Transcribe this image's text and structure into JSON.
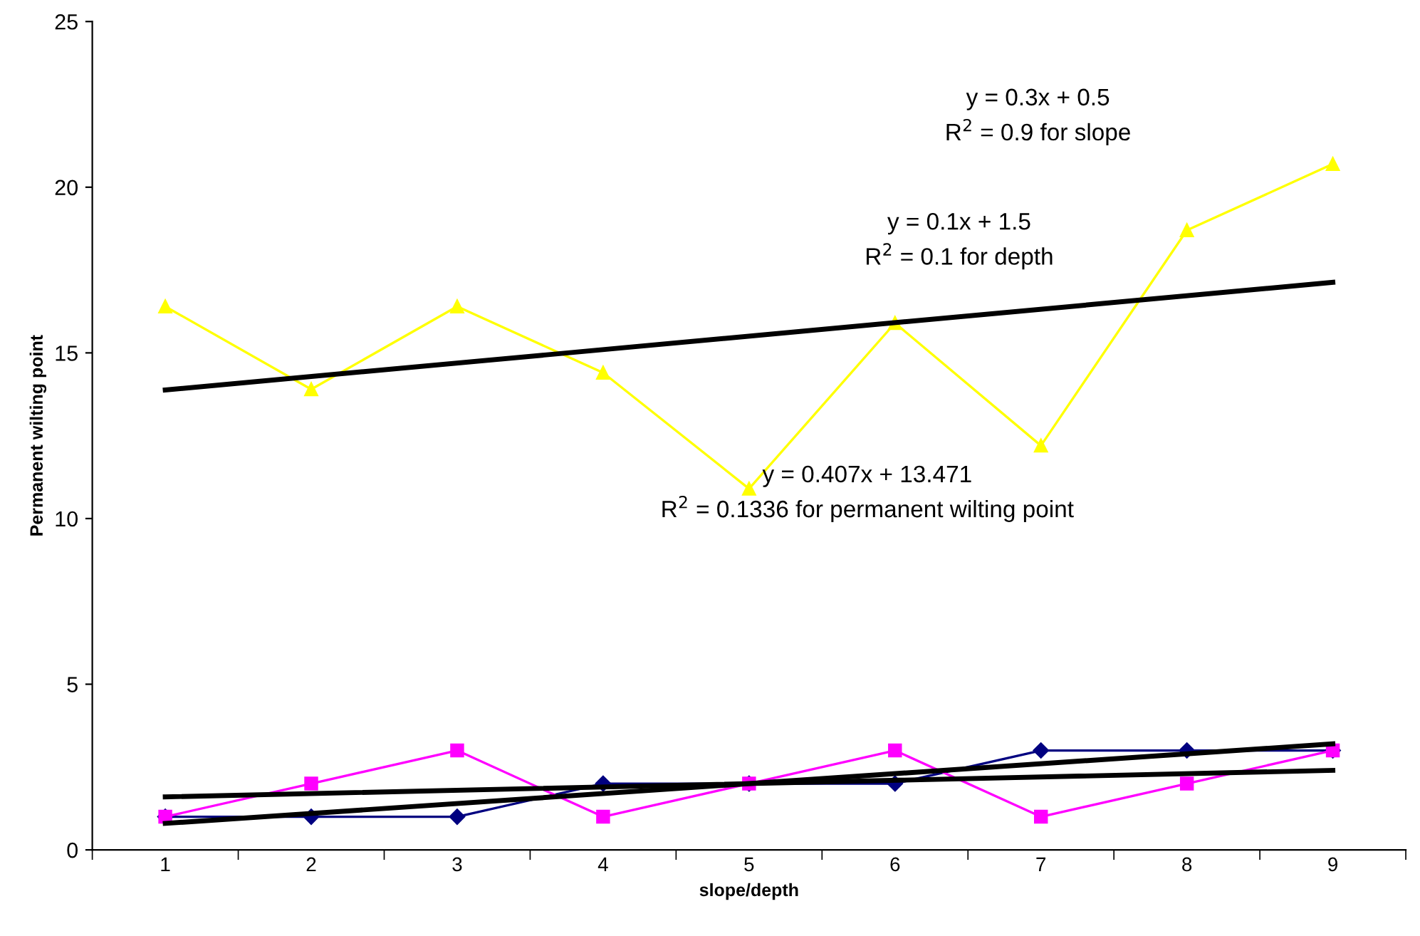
{
  "chart_data": {
    "type": "line",
    "xlabel": "slope/depth",
    "ylabel": "Permanent wilting point",
    "categories": [
      "1",
      "2",
      "3",
      "4",
      "5",
      "6",
      "7",
      "8",
      "9"
    ],
    "series": [
      {
        "color": "#000080",
        "marker": "diamond",
        "values": [
          1,
          1,
          1,
          2,
          2,
          2,
          3,
          3,
          3
        ]
      },
      {
        "color": "#ff00ff",
        "marker": "square",
        "values": [
          1,
          2,
          3,
          1,
          2,
          3,
          1,
          2,
          3
        ]
      },
      {
        "color": "#ffff00",
        "marker": "triangle",
        "values": [
          16.4,
          13.9,
          16.4,
          14.4,
          10.9,
          15.9,
          12.2,
          18.7,
          20.7
        ]
      },
      {
        "color": "#000000",
        "marker": "none",
        "x": [
          "1",
          "9"
        ],
        "values": [
          0.8,
          3.2
        ]
      },
      {
        "color": "#000000",
        "marker": "none",
        "x": [
          "1",
          "9"
        ],
        "values": [
          1.6,
          2.4
        ]
      },
      {
        "color": "#000000",
        "marker": "none",
        "x": [
          "1",
          "9"
        ],
        "values": [
          13.88,
          17.13
        ]
      }
    ],
    "ylim": [
      0,
      25
    ],
    "yticks": [
      0,
      5,
      10,
      15,
      20,
      25
    ],
    "grid": false,
    "legend": false,
    "annotations": [
      "y = 0.3x + 0.5\nR$^{2}$ = 0.9 for slope",
      "y = 0.1x + 1.5\nR$^{2}$ = 0.1 for depth",
      "y = 0.407x + 13.471\nR$^{2}$ = 0.1336 for permanent wilting point"
    ]
  }
}
